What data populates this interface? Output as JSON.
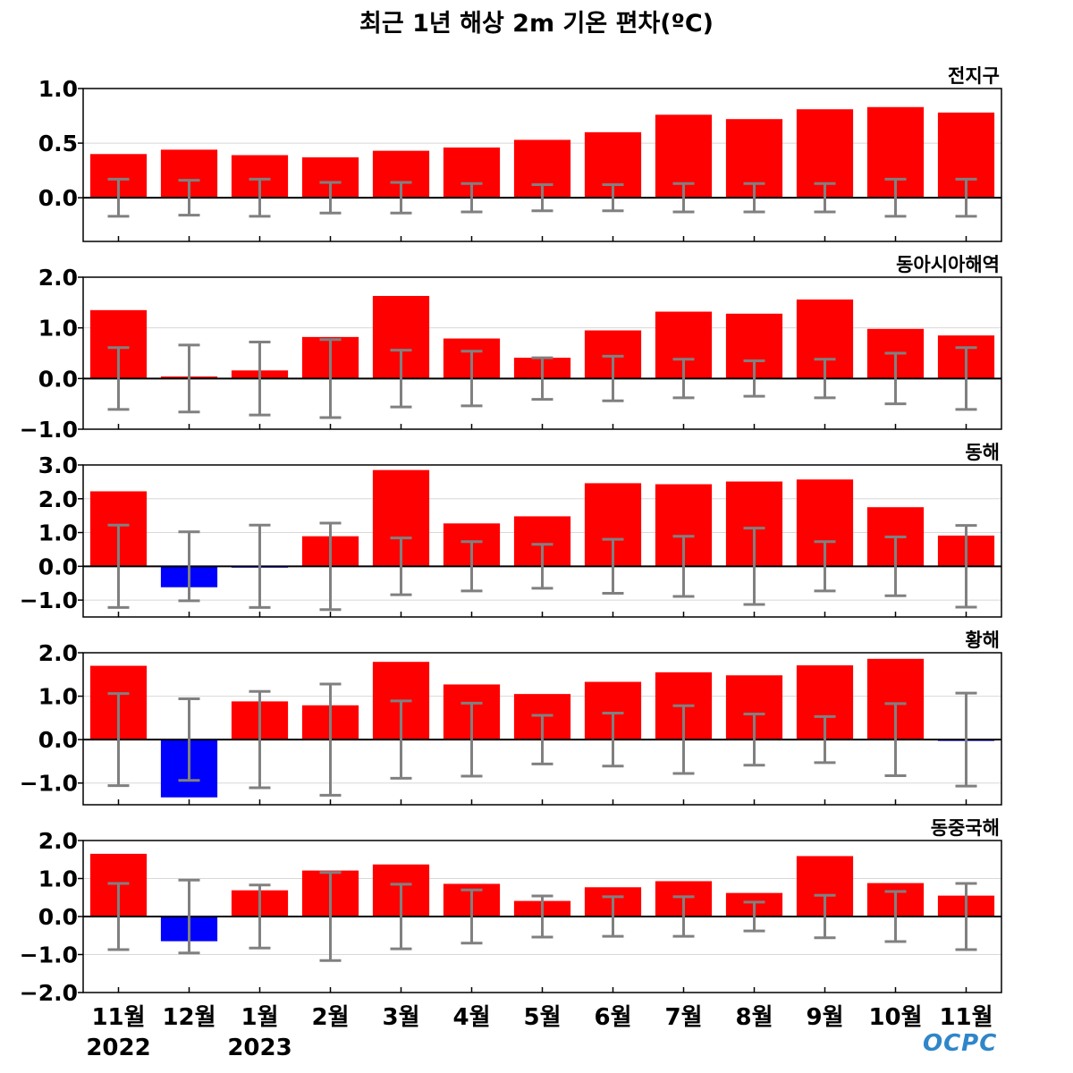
{
  "title": "최근 1년 해상 2m 기온 편차(ºC)",
  "logo_text": "OCPC",
  "colors": {
    "positive": "#ff0000",
    "negative": "#0000ff",
    "errorbar": "#808080",
    "zero_line": "#000000",
    "grid": "#d8d8d8"
  },
  "x_labels": [
    {
      "month": "11월",
      "year": "2022"
    },
    {
      "month": "12월",
      "year": ""
    },
    {
      "month": "1월",
      "year": "2023"
    },
    {
      "month": "2월",
      "year": ""
    },
    {
      "month": "3월",
      "year": ""
    },
    {
      "month": "4월",
      "year": ""
    },
    {
      "month": "5월",
      "year": ""
    },
    {
      "month": "6월",
      "year": ""
    },
    {
      "month": "7월",
      "year": ""
    },
    {
      "month": "8월",
      "year": ""
    },
    {
      "month": "9월",
      "year": ""
    },
    {
      "month": "10월",
      "year": ""
    },
    {
      "month": "11월",
      "year": ""
    }
  ],
  "chart_data": [
    {
      "type": "bar",
      "region": "전지구",
      "ylim": [
        -0.4,
        1.0
      ],
      "yticks": [
        {
          "value": 0.0,
          "label": "0.0"
        },
        {
          "value": 0.5,
          "label": "0.5"
        },
        {
          "value": 1.0,
          "label": "1.0"
        }
      ],
      "values": [
        0.4,
        0.44,
        0.39,
        0.37,
        0.43,
        0.46,
        0.53,
        0.6,
        0.76,
        0.72,
        0.81,
        0.83,
        0.78
      ],
      "error": [
        0.17,
        0.16,
        0.17,
        0.14,
        0.14,
        0.13,
        0.12,
        0.12,
        0.13,
        0.13,
        0.13,
        0.17,
        0.17
      ]
    },
    {
      "type": "bar",
      "region": "동아시아해역",
      "ylim": [
        -1.0,
        2.0
      ],
      "yticks": [
        {
          "value": -1.0,
          "label": "−1.0"
        },
        {
          "value": 0.0,
          "label": "0.0"
        },
        {
          "value": 1.0,
          "label": "1.0"
        },
        {
          "value": 2.0,
          "label": "2.0"
        }
      ],
      "values": [
        1.35,
        0.04,
        0.16,
        0.82,
        1.63,
        0.79,
        0.41,
        0.95,
        1.32,
        1.28,
        1.56,
        0.98,
        0.85
      ],
      "error": [
        0.61,
        0.66,
        0.72,
        0.77,
        0.56,
        0.54,
        0.41,
        0.44,
        0.38,
        0.35,
        0.38,
        0.5,
        0.61
      ]
    },
    {
      "type": "bar",
      "region": "동해",
      "ylim": [
        -1.5,
        3.0
      ],
      "yticks": [
        {
          "value": -1.0,
          "label": "−1.0"
        },
        {
          "value": 0.0,
          "label": "0.0"
        },
        {
          "value": 1.0,
          "label": "1.0"
        },
        {
          "value": 2.0,
          "label": "2.0"
        },
        {
          "value": 3.0,
          "label": "3.0"
        }
      ],
      "values": [
        2.22,
        -0.62,
        -0.03,
        0.89,
        2.85,
        1.27,
        1.48,
        2.46,
        2.43,
        2.51,
        2.57,
        1.75,
        0.91
      ],
      "error": [
        1.22,
        1.02,
        1.22,
        1.28,
        0.84,
        0.73,
        0.65,
        0.8,
        0.89,
        1.13,
        0.73,
        0.87,
        1.21
      ]
    },
    {
      "type": "bar",
      "region": "황해",
      "ylim": [
        -1.5,
        2.0
      ],
      "yticks": [
        {
          "value": -1.0,
          "label": "−1.0"
        },
        {
          "value": 0.0,
          "label": "0.0"
        },
        {
          "value": 1.0,
          "label": "1.0"
        },
        {
          "value": 2.0,
          "label": "2.0"
        }
      ],
      "values": [
        1.7,
        -1.33,
        0.88,
        0.79,
        1.79,
        1.27,
        1.05,
        1.33,
        1.55,
        1.48,
        1.71,
        1.86,
        -0.03
      ],
      "error": [
        1.06,
        0.94,
        1.11,
        1.28,
        0.89,
        0.84,
        0.56,
        0.61,
        0.78,
        0.59,
        0.53,
        0.83,
        1.07
      ]
    },
    {
      "type": "bar",
      "region": "동중국해",
      "ylim": [
        -2.0,
        2.0
      ],
      "yticks": [
        {
          "value": -2.0,
          "label": "−2.0"
        },
        {
          "value": -1.0,
          "label": "−1.0"
        },
        {
          "value": 0.0,
          "label": "0.0"
        },
        {
          "value": 1.0,
          "label": "1.0"
        },
        {
          "value": 2.0,
          "label": "2.0"
        }
      ],
      "values": [
        1.65,
        -0.65,
        0.69,
        1.21,
        1.37,
        0.86,
        0.41,
        0.77,
        0.93,
        0.62,
        1.59,
        0.88,
        0.55
      ],
      "error": [
        0.87,
        0.96,
        0.83,
        1.16,
        0.85,
        0.7,
        0.54,
        0.52,
        0.52,
        0.38,
        0.56,
        0.66,
        0.87
      ]
    }
  ]
}
